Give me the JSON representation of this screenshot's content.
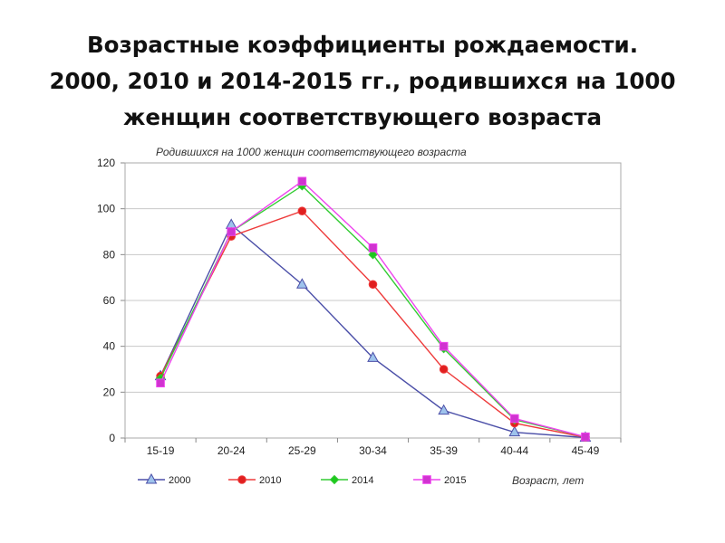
{
  "slide": {
    "title_lines": [
      "Возрастные коэффициенты рождаемости.",
      "2000, 2010 и 2014-2015 гг., родившихся на 1000",
      "женщин соответствующего возраста"
    ]
  },
  "chart_data": {
    "type": "line",
    "subtitle": "Родившихся на 1000 женщин соответствующего возраста",
    "xlabel": "Возраст, лет",
    "ylabel": "",
    "categories": [
      "15-19",
      "20-24",
      "25-29",
      "30-34",
      "35-39",
      "40-44",
      "45-49"
    ],
    "ylim": [
      0,
      120
    ],
    "yticks": [
      0,
      20,
      40,
      60,
      80,
      100,
      120
    ],
    "grid": true,
    "legend_position": "bottom",
    "series": [
      {
        "name": "2000",
        "color": "#4b4fa8",
        "marker": "triangle",
        "marker_fill": "#9ec3ec",
        "values": [
          27,
          93,
          67,
          35,
          12,
          2.5,
          0.2
        ]
      },
      {
        "name": "2010",
        "color": "#ee3b3b",
        "marker": "circle",
        "marker_fill": "#e01f1f",
        "values": [
          27,
          88,
          99,
          67,
          30,
          6.5,
          0.3
        ]
      },
      {
        "name": "2014",
        "color": "#33cc33",
        "marker": "diamond",
        "marker_fill": "#1ec81e",
        "values": [
          26,
          90,
          110,
          80,
          39,
          8,
          0.5
        ]
      },
      {
        "name": "2015",
        "color": "#ee44ee",
        "marker": "square",
        "marker_fill": "#d033d0",
        "values": [
          24,
          90,
          112,
          83,
          40,
          8.5,
          0.5
        ]
      }
    ]
  }
}
